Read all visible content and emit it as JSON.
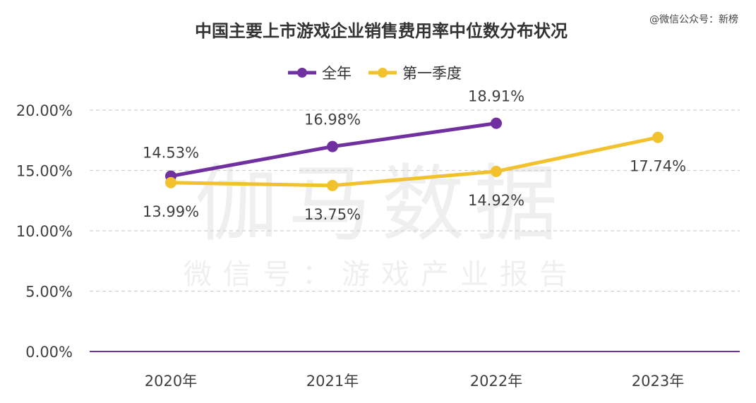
{
  "credit": "@微信公众号：新榜",
  "watermark": {
    "brand": "伽马数据",
    "line": "微信号：游戏产业报告"
  },
  "chart_data": {
    "type": "line",
    "title": "中国主要上市游戏企业销售费用率中位数分布状况",
    "categories": [
      "2020年",
      "2021年",
      "2022年",
      "2023年"
    ],
    "y_ticks": [
      "0.00%",
      "5.00%",
      "10.00%",
      "15.00%",
      "20.00%"
    ],
    "ylim": [
      0,
      20
    ],
    "grid": true,
    "legend_position": "top-center",
    "series": [
      {
        "name": "全年",
        "color": "#7030A0",
        "values": [
          14.53,
          16.98,
          18.91,
          null
        ],
        "labels": [
          "14.53%",
          "16.98%",
          "18.91%",
          ""
        ],
        "label_position": "above"
      },
      {
        "name": "第一季度",
        "color": "#F2C12E",
        "values": [
          13.99,
          13.75,
          14.92,
          17.74
        ],
        "labels": [
          "13.99%",
          "13.75%",
          "14.92%",
          "17.74%"
        ],
        "label_position": "below"
      }
    ]
  }
}
